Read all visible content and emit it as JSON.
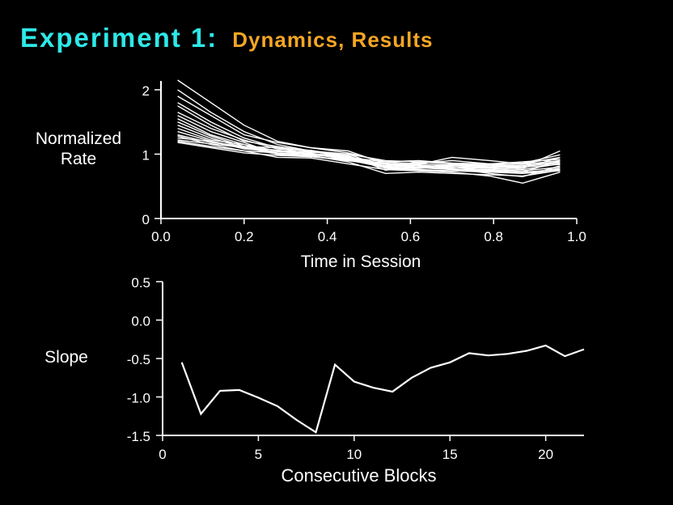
{
  "title": {
    "main": "Experiment 1:",
    "sub": "Dynamics, Results",
    "main_color": "#2ee8e8",
    "sub_color": "#f5a623"
  },
  "chart_data": [
    {
      "type": "line",
      "xlabel": "Time in Session",
      "ylabel_lines": [
        "Normalized",
        "Rate"
      ],
      "xlim": [
        0.0,
        1.0
      ],
      "ylim": [
        0,
        2.2
      ],
      "xticks": [
        "0.0",
        "0.2",
        "0.4",
        "0.6",
        "0.8",
        "1.0"
      ],
      "yticks": [
        "0",
        "1",
        "2"
      ],
      "x": [
        0.04,
        0.12,
        0.2,
        0.28,
        0.36,
        0.45,
        0.54,
        0.62,
        0.7,
        0.79,
        0.87,
        0.96
      ],
      "series": [
        {
          "values": [
            2.15,
            1.8,
            1.45,
            1.2,
            1.1,
            1.05,
            0.85,
            0.8,
            0.82,
            0.8,
            0.78,
            0.95
          ]
        },
        {
          "values": [
            2.0,
            1.65,
            1.35,
            1.15,
            1.05,
            1.0,
            0.8,
            0.78,
            0.8,
            0.75,
            0.72,
            0.9
          ]
        },
        {
          "values": [
            1.9,
            1.6,
            1.3,
            1.18,
            1.1,
            1.02,
            0.88,
            0.85,
            0.83,
            0.82,
            0.8,
            1.05
          ]
        },
        {
          "values": [
            1.8,
            1.5,
            1.25,
            1.1,
            1.0,
            0.98,
            0.75,
            0.8,
            0.78,
            0.7,
            0.65,
            0.82
          ]
        },
        {
          "values": [
            1.75,
            1.45,
            1.2,
            1.12,
            1.05,
            0.95,
            0.82,
            0.86,
            0.9,
            0.85,
            0.88,
            0.92
          ]
        },
        {
          "values": [
            1.65,
            1.4,
            1.22,
            1.08,
            1.06,
            0.97,
            0.78,
            0.75,
            0.74,
            0.72,
            0.7,
            0.78
          ]
        },
        {
          "values": [
            1.6,
            1.35,
            1.18,
            1.0,
            1.02,
            0.9,
            0.85,
            0.82,
            0.8,
            0.78,
            0.76,
            0.85
          ]
        },
        {
          "values": [
            1.55,
            1.3,
            1.15,
            1.05,
            1.0,
            0.93,
            0.8,
            0.88,
            0.85,
            0.83,
            0.82,
            0.88
          ]
        },
        {
          "values": [
            1.5,
            1.28,
            1.12,
            1.1,
            1.04,
            0.96,
            0.84,
            0.8,
            0.77,
            0.76,
            0.74,
            0.8
          ]
        },
        {
          "values": [
            1.45,
            1.25,
            1.1,
            1.02,
            0.98,
            0.88,
            0.7,
            0.72,
            0.7,
            0.68,
            0.66,
            0.75
          ]
        },
        {
          "values": [
            1.4,
            1.22,
            1.15,
            1.0,
            0.97,
            0.9,
            0.82,
            0.84,
            0.95,
            0.9,
            0.85,
            0.95
          ]
        },
        {
          "values": [
            1.35,
            1.2,
            1.08,
            1.04,
            1.0,
            0.92,
            0.86,
            0.83,
            0.8,
            0.79,
            0.8,
            0.84
          ]
        },
        {
          "values": [
            1.3,
            1.18,
            1.12,
            1.06,
            1.03,
            1.0,
            0.9,
            0.88,
            0.86,
            0.85,
            0.84,
            0.9
          ]
        },
        {
          "values": [
            1.28,
            1.15,
            1.05,
            0.95,
            0.94,
            0.85,
            0.76,
            0.74,
            0.72,
            0.66,
            0.55,
            0.72
          ]
        },
        {
          "values": [
            1.25,
            1.2,
            1.1,
            1.0,
            0.99,
            0.94,
            0.8,
            0.79,
            0.76,
            0.74,
            0.72,
            0.76
          ]
        },
        {
          "values": [
            1.22,
            1.16,
            1.1,
            1.06,
            1.01,
            0.95,
            0.88,
            0.9,
            0.86,
            0.8,
            0.82,
            0.86
          ]
        },
        {
          "values": [
            1.2,
            1.12,
            1.05,
            1.02,
            0.96,
            0.9,
            0.82,
            0.8,
            0.84,
            0.83,
            0.86,
            0.99
          ]
        },
        {
          "values": [
            1.18,
            1.1,
            1.02,
            0.98,
            0.96,
            0.91,
            0.79,
            0.76,
            0.74,
            0.73,
            0.7,
            0.74
          ]
        }
      ]
    },
    {
      "type": "line",
      "xlabel": "Consecutive Blocks",
      "ylabel": "Slope",
      "xlim": [
        0,
        22
      ],
      "ylim": [
        -1.5,
        0.5
      ],
      "xticks": [
        "0",
        "5",
        "10",
        "15",
        "20"
      ],
      "yticks": [
        "0.5",
        "0.0",
        "-0.5",
        "-1.0",
        "-1.5"
      ],
      "x": [
        1,
        2,
        3,
        4,
        5,
        6,
        7,
        8,
        9,
        10,
        11,
        12,
        13,
        14,
        15,
        16,
        17,
        18,
        19,
        20,
        21,
        22
      ],
      "series": [
        {
          "values": [
            -0.55,
            -1.22,
            -0.92,
            -0.91,
            -1.01,
            -1.12,
            -1.3,
            -1.46,
            -0.58,
            -0.8,
            -0.88,
            -0.93,
            -0.75,
            -0.62,
            -0.55,
            -0.43,
            -0.46,
            -0.44,
            -0.4,
            -0.33,
            -0.47,
            -0.38
          ]
        }
      ]
    }
  ]
}
